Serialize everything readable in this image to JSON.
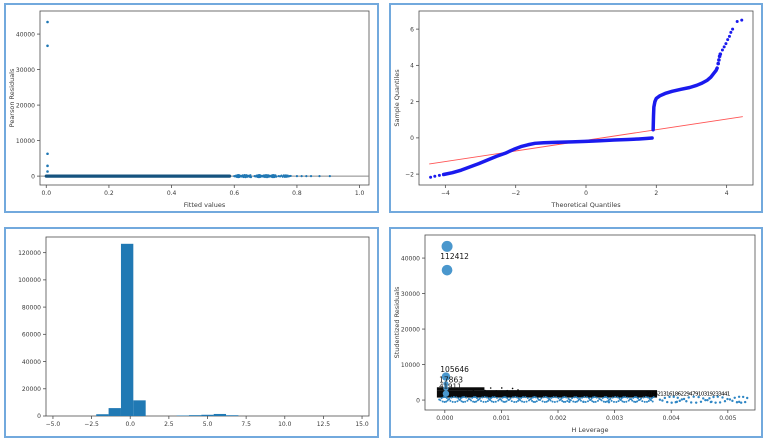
{
  "page": {
    "background": "#ffffff",
    "panel_border_color": "#72a9dd"
  },
  "chart_data": [
    {
      "id": "residuals-vs-fitted",
      "type": "scatter",
      "title": "",
      "axes": {
        "xlabel": "Fitted values",
        "ylabel": "Pearson Residuals",
        "xlim": [
          -0.02,
          1.03
        ],
        "ylim": [
          -2500,
          46500
        ],
        "xticks": [
          0.0,
          0.2,
          0.4,
          0.6,
          0.8,
          1.0
        ],
        "xticklabels": [
          "0.0",
          "0.2",
          "0.4",
          "0.6",
          "0.8",
          "1.0"
        ],
        "yticks": [
          0,
          10000,
          20000,
          30000,
          40000
        ],
        "yticklabels": [
          "0",
          "10000",
          "20000",
          "30000",
          "40000"
        ],
        "grid": false
      },
      "margins": {
        "l": 34,
        "r": 8,
        "t": 6,
        "b": 26
      },
      "elements": [
        {
          "t": "hline",
          "y": 0,
          "c": "#888888",
          "w": 0.9
        },
        {
          "t": "poly",
          "c": "#15537f",
          "w": 3.2,
          "xy": [
            [
              0.0,
              0
            ],
            [
              0.585,
              0
            ]
          ]
        },
        {
          "t": "strip",
          "x0": 0.6,
          "x1": 0.655,
          "y": 0,
          "n": 26,
          "r": 1.1,
          "jy": 1.0,
          "c": "#1f77b4"
        },
        {
          "t": "strip",
          "x0": 0.665,
          "x1": 0.735,
          "y": 0,
          "n": 30,
          "r": 1.1,
          "jy": 1.0,
          "c": "#1f77b4"
        },
        {
          "t": "strip",
          "x0": 0.742,
          "x1": 0.782,
          "y": 0,
          "n": 12,
          "r": 1.1,
          "jy": 0.8,
          "c": "#1f77b4"
        },
        {
          "t": "pts",
          "c": "#1f77b4",
          "r": 1.1,
          "xy": [
            [
              0.8,
              0
            ],
            [
              0.815,
              0
            ],
            [
              0.83,
              0
            ],
            [
              0.845,
              0
            ],
            [
              0.872,
              0
            ],
            [
              0.905,
              0
            ]
          ]
        },
        {
          "t": "pts",
          "c": "#1f77b4",
          "r": 1.3,
          "xy": [
            [
              0.004,
              43400
            ],
            [
              0.004,
              36700
            ],
            [
              0.004,
              6300
            ],
            [
              0.004,
              2900
            ],
            [
              0.004,
              1300
            ]
          ]
        }
      ]
    },
    {
      "id": "qq-plot",
      "type": "line",
      "title": "",
      "axes": {
        "xlabel": "Theoretical Quantiles",
        "ylabel": "Sample Quantiles",
        "xlim": [
          -4.75,
          4.75
        ],
        "ylim": [
          -2.6,
          7.0
        ],
        "xticks": [
          -4,
          -2,
          0,
          2,
          4
        ],
        "xticklabels": [
          "−4",
          "−2",
          "0",
          "2",
          "4"
        ],
        "yticks": [
          -2,
          0,
          2,
          4,
          6
        ],
        "yticklabels": [
          "−2",
          "0",
          "2",
          "4",
          "6"
        ],
        "grid": false,
        "reference_line": {
          "x": [
            -4.45,
            4.45
          ],
          "y": [
            -1.44,
            1.17
          ],
          "color": "#ff5555"
        }
      },
      "margins": {
        "l": 28,
        "r": 8,
        "t": 6,
        "b": 26
      },
      "elements": [
        {
          "t": "poly",
          "c": "#ff5555",
          "w": 0.9,
          "xy": [
            [
              -4.45,
              -1.44
            ],
            [
              4.45,
              1.17
            ]
          ]
        },
        {
          "t": "pts",
          "c": "#1a1aee",
          "r": 1.5,
          "xy": [
            [
              -4.42,
              -2.17
            ],
            [
              -4.3,
              -2.12
            ],
            [
              -4.17,
              -2.07
            ]
          ]
        },
        {
          "t": "poly",
          "c": "#1a1aee",
          "w": 3.5,
          "xy": [
            [
              -4.05,
              -2.02
            ],
            [
              -3.8,
              -1.92
            ],
            [
              -3.55,
              -1.78
            ],
            [
              -3.3,
              -1.6
            ],
            [
              -3.05,
              -1.42
            ],
            [
              -2.8,
              -1.22
            ],
            [
              -2.55,
              -1.02
            ],
            [
              -2.3,
              -0.85
            ],
            [
              -2.05,
              -0.63
            ],
            [
              -1.85,
              -0.48
            ],
            [
              -1.65,
              -0.38
            ],
            [
              -1.45,
              -0.3
            ],
            [
              -1.2,
              -0.27
            ],
            [
              -0.8,
              -0.24
            ],
            [
              -0.4,
              -0.22
            ],
            [
              0.0,
              -0.19
            ],
            [
              0.4,
              -0.16
            ],
            [
              0.8,
              -0.12
            ],
            [
              1.2,
              -0.09
            ],
            [
              1.5,
              -0.06
            ],
            [
              1.75,
              -0.03
            ],
            [
              1.88,
              -0.01
            ]
          ]
        },
        {
          "t": "poly",
          "c": "#1a1aee",
          "w": 3.5,
          "xy": [
            [
              1.91,
              0.45
            ],
            [
              1.92,
              1.2
            ],
            [
              1.93,
              1.7
            ],
            [
              1.96,
              2.0
            ],
            [
              2.0,
              2.18
            ],
            [
              2.1,
              2.32
            ],
            [
              2.25,
              2.45
            ],
            [
              2.45,
              2.57
            ],
            [
              2.7,
              2.68
            ],
            [
              2.95,
              2.78
            ],
            [
              3.15,
              2.9
            ],
            [
              3.3,
              3.02
            ],
            [
              3.45,
              3.18
            ],
            [
              3.55,
              3.35
            ],
            [
              3.63,
              3.55
            ],
            [
              3.7,
              3.72
            ],
            [
              3.73,
              3.85
            ]
          ]
        },
        {
          "t": "pts",
          "c": "#1a1aee",
          "r": 1.8,
          "xy": [
            [
              3.76,
              4.1
            ],
            [
              3.78,
              4.3
            ],
            [
              3.8,
              4.5
            ],
            [
              3.82,
              4.62
            ]
          ]
        },
        {
          "t": "pts",
          "c": "#1a1aee",
          "r": 1.5,
          "xy": [
            [
              3.88,
              4.85
            ],
            [
              3.93,
              5.02
            ],
            [
              3.98,
              5.2
            ],
            [
              4.03,
              5.42
            ],
            [
              4.08,
              5.6
            ],
            [
              4.12,
              5.82
            ],
            [
              4.17,
              6.0
            ],
            [
              4.3,
              6.42
            ],
            [
              4.43,
              6.5
            ]
          ]
        }
      ]
    },
    {
      "id": "residual-histogram",
      "type": "bar",
      "title": "",
      "axes": {
        "xlabel": "",
        "ylabel": "",
        "xlim": [
          -5.45,
          15.45
        ],
        "ylim": [
          0,
          131500
        ],
        "xticks": [
          -5.0,
          -2.5,
          0.0,
          2.5,
          5.0,
          7.5,
          10.0,
          12.5,
          15.0
        ],
        "xticklabels": [
          "−5.0",
          "−2.5",
          "0.0",
          "2.5",
          "5.0",
          "7.5",
          "10.0",
          "12.5",
          "15.0"
        ],
        "yticks": [
          0,
          20000,
          40000,
          60000,
          80000,
          100000,
          120000
        ],
        "yticklabels": [
          "0",
          "20000",
          "40000",
          "60000",
          "80000",
          "100000",
          "120000"
        ],
        "grid": false
      },
      "margins": {
        "l": 40,
        "r": 8,
        "t": 8,
        "b": 20
      },
      "elements": [
        {
          "t": "bars",
          "c": "#2079b4",
          "bins": [
            [
              -2.2,
              -1.4,
              1300
            ],
            [
              -1.4,
              -0.6,
              5800
            ],
            [
              -0.6,
              0.2,
              126500
            ],
            [
              0.2,
              1.0,
              11500
            ],
            [
              3.0,
              3.8,
              350
            ],
            [
              3.8,
              4.6,
              600
            ],
            [
              4.6,
              5.4,
              900
            ],
            [
              5.4,
              6.2,
              1500
            ],
            [
              6.2,
              7.0,
              550
            ]
          ]
        }
      ]
    },
    {
      "id": "influence-plot",
      "type": "scatter",
      "title": "",
      "axes": {
        "xlabel": "H Leverage",
        "ylabel": "Studentized Residuals",
        "xlim": [
          -0.00035,
          0.00548
        ],
        "ylim": [
          -2800,
          46500
        ],
        "xticks": [
          0.0,
          0.001,
          0.002,
          0.003,
          0.004,
          0.005
        ],
        "xticklabels": [
          "0.000",
          "0.001",
          "0.002",
          "0.003",
          "0.004",
          "0.005"
        ],
        "yticks": [
          0,
          10000,
          20000,
          30000,
          40000
        ],
        "yticklabels": [
          "0",
          "10000",
          "20000",
          "30000",
          "40000"
        ],
        "grid": false
      },
      "margins": {
        "l": 34,
        "r": 6,
        "t": 6,
        "b": 26
      },
      "point_labels": [
        "112412",
        "105646",
        "17863",
        "41911"
      ],
      "elements": [
        {
          "t": "rect",
          "x0": -0.00014,
          "x1": 0.00375,
          "y0": 700,
          "y1": 2800,
          "c": "#0a0a0a"
        },
        {
          "t": "rect",
          "x0": -0.00014,
          "x1": 0.0007,
          "y0": 2800,
          "y1": 3600,
          "c": "#0a0a0a"
        },
        {
          "t": "strip",
          "x0": 0.0004,
          "x1": 0.0013,
          "y": 3000,
          "n": 10,
          "r": 0.8,
          "jy": 1.5,
          "c": "#0a0a0a"
        },
        {
          "t": "strip",
          "x0": -0.0001,
          "x1": 0.0037,
          "y": 150,
          "n": 220,
          "r": 1.0,
          "jy": 2.5,
          "c": "#2e86c4"
        },
        {
          "t": "strip",
          "x0": 0.0038,
          "x1": 0.00535,
          "y": 100,
          "n": 40,
          "r": 1.2,
          "jy": 3.0,
          "c": "#2e86c4"
        },
        {
          "t": "pts",
          "c": "#2e86c4",
          "r": 1.2,
          "xy": [
            [
              0.0022,
              -500
            ],
            [
              0.00245,
              -500
            ],
            [
              0.0029,
              -600
            ],
            [
              0.0041,
              -500
            ],
            [
              0.0047,
              -550
            ],
            [
              0.0052,
              -500
            ]
          ]
        },
        {
          "t": "bubbles",
          "c": "#4a97cd",
          "xy": [
            [
              4e-05,
              43300,
              5.5
            ],
            [
              4e-05,
              36600,
              5.3
            ],
            [
              2e-05,
              6600,
              4.2
            ],
            [
              2e-05,
              4600,
              2.6
            ],
            [
              2e-05,
              3300,
              2.6
            ],
            [
              2e-05,
              1800,
              3.2
            ]
          ]
        },
        {
          "t": "label",
          "x": -8e-05,
          "y": 39800,
          "text": "112412",
          "c": "#111111",
          "fs": 7.5
        },
        {
          "t": "label",
          "x": -8e-05,
          "y": 7900,
          "text": "105646",
          "c": "#111111",
          "fs": 7.5
        },
        {
          "t": "label",
          "x": -0.0001,
          "y": 4900,
          "text": "17863",
          "c": "#111111",
          "fs": 7.5
        },
        {
          "t": "label",
          "x": -0.0001,
          "y": 3300,
          "text": "41911",
          "c": "#111111",
          "fs": 7
        },
        {
          "t": "label",
          "x": 0.00355,
          "y": 1300,
          "text": "21662131618622947910319233441",
          "c": "#000000",
          "fs": 5.5,
          "ls": -0.6
        }
      ]
    }
  ]
}
